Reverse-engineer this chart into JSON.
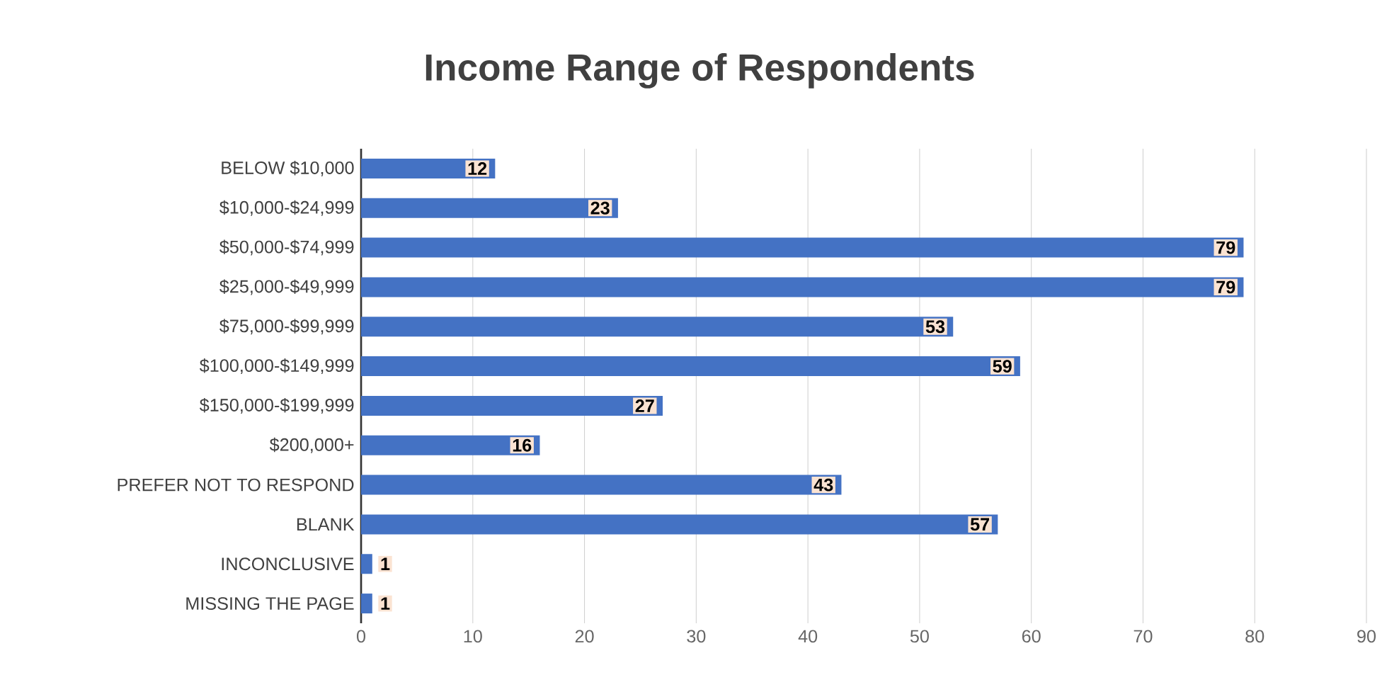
{
  "chart_data": {
    "type": "bar",
    "orientation": "horizontal",
    "title": "Income Range of Respondents",
    "categories": [
      "BELOW $10,000",
      "$10,000-$24,999",
      "$50,000-$74,999",
      "$25,000-$49,999",
      "$75,000-$99,999",
      "$100,000-$149,999",
      "$150,000-$199,999",
      "$200,000+",
      "PREFER NOT TO RESPOND",
      "BLANK",
      "INCONCLUSIVE",
      "MISSING THE PAGE"
    ],
    "values": [
      12,
      23,
      79,
      79,
      53,
      59,
      27,
      16,
      43,
      57,
      1,
      1
    ],
    "color": "#4472c4",
    "xlim": [
      0,
      90
    ],
    "xticks": [
      0,
      10,
      20,
      30,
      40,
      50,
      60,
      70,
      80,
      90
    ],
    "grid": "x",
    "data_labels": true
  }
}
